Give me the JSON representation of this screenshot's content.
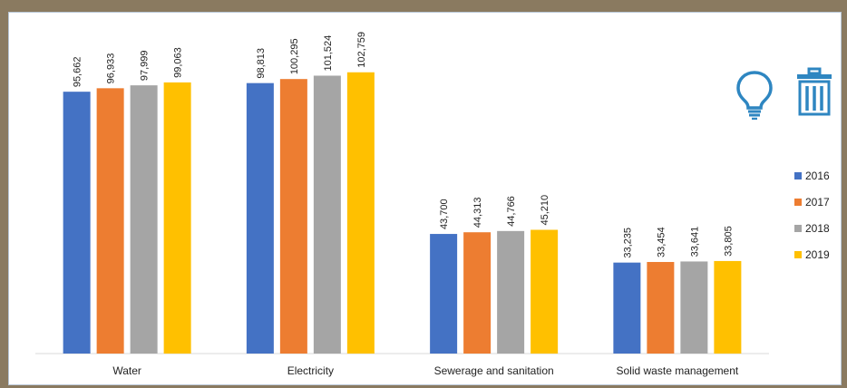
{
  "chart_data": {
    "type": "bar",
    "categories": [
      "Water",
      "Electricity",
      "Sewerage and sanitation",
      "Solid waste management"
    ],
    "series": [
      {
        "name": "2016",
        "color": "#4472c4",
        "values": [
          95662,
          98813,
          43700,
          33235
        ]
      },
      {
        "name": "2017",
        "color": "#ed7d31",
        "values": [
          96933,
          100295,
          44313,
          33454
        ]
      },
      {
        "name": "2018",
        "color": "#a5a5a5",
        "values": [
          97999,
          101524,
          44766,
          33641
        ]
      },
      {
        "name": "2019",
        "color": "#ffc000",
        "values": [
          99063,
          102759,
          45210,
          33805
        ]
      }
    ],
    "value_labels": [
      [
        "95,662",
        "98,813",
        "43,700",
        "33,235"
      ],
      [
        "96,933",
        "100,295",
        "44,313",
        "33,454"
      ],
      [
        "97,999",
        "101,524",
        "44,766",
        "33,641"
      ],
      [
        "99,063",
        "102,759",
        "45,210",
        "33,805"
      ]
    ],
    "legend_position": "right",
    "ylim": [
      0,
      104000
    ],
    "grid": false,
    "axis_color": "#d9d9d9"
  },
  "icons": {
    "lightbulb": {
      "name": "lightbulb-icon",
      "color": "#2e86c1"
    },
    "trash": {
      "name": "trash-icon",
      "color": "#2e86c1"
    }
  }
}
